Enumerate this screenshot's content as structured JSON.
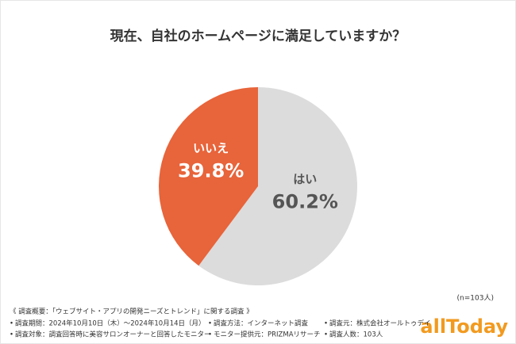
{
  "chart_data": {
    "type": "pie",
    "title": "現在、自社のホームページに満足していますか？",
    "categories": [
      "はい",
      "いいえ"
    ],
    "values": [
      60.2,
      39.8
    ],
    "value_labels": [
      "60.2%",
      "39.8%"
    ],
    "colors": [
      "#dcdcdc",
      "#e8643a"
    ],
    "label_colors": [
      "#555555",
      "#ffffff"
    ],
    "note": "(n=103人)"
  },
  "footer": {
    "heading": "《 調査概要：「ウェブサイト・アプリの開発ニーズとトレンド」に関する調査 》",
    "items": [
      "調査期間：2024年10月10日（木）〜2024年10月14日（月）",
      "調査方法：インターネット調査",
      "調査元：株式会社オールトゥデイ",
      "調査対象：調査回答時に美容サロンオーナーと回答したモニター",
      "モニター提供元：PRIZMAリサーチ",
      "調査人数：103人"
    ],
    "logo": "allToday"
  }
}
